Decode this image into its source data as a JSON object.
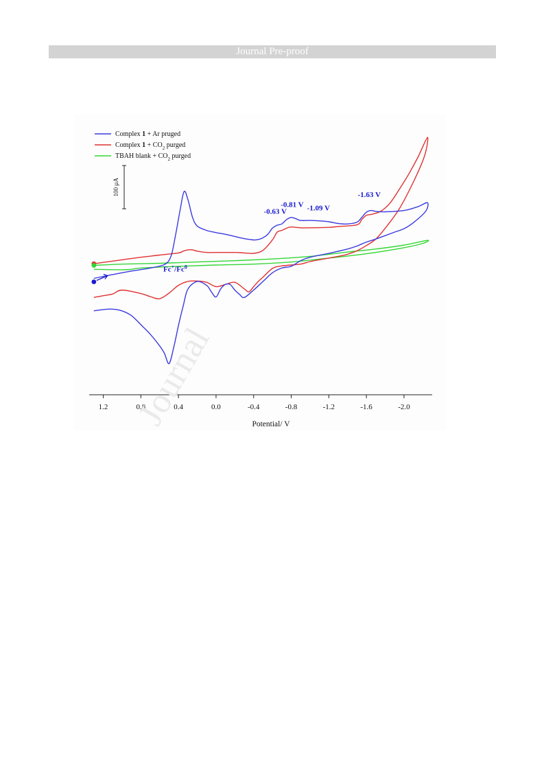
{
  "header": {
    "title": "Journal Pre-proof"
  },
  "watermark": {
    "text": "Journal"
  },
  "chart_data": {
    "type": "line",
    "title": "",
    "xlabel": "Potential/ V",
    "ylabel": "",
    "x_reversed": true,
    "xlim": [
      1.35,
      -2.3
    ],
    "ylim": [
      -310,
      290
    ],
    "x_ticks": [
      1.2,
      0.8,
      0.4,
      0.0,
      -0.4,
      -0.8,
      -1.2,
      -1.6,
      -2.0
    ],
    "x_tick_labels": [
      "1.2",
      "0.8",
      "0.4",
      "0.0",
      "-0.4",
      "-0.8",
      "-1.2",
      "-1.6",
      "-2.0"
    ],
    "grid": false,
    "legend_position": "top-left",
    "scale_bar": {
      "label": "100 µA",
      "value_uA": 100
    },
    "series": [
      {
        "name": "Complex 1 + Ar pruged",
        "color": "#3a3ae0",
        "points": [
          [
            1.3,
            -41
          ],
          [
            1.1,
            -32
          ],
          [
            0.9,
            -24
          ],
          [
            0.7,
            -17
          ],
          [
            0.55,
            -9
          ],
          [
            0.48,
            10
          ],
          [
            0.43,
            60
          ],
          [
            0.38,
            120
          ],
          [
            0.34,
            160
          ],
          [
            0.3,
            142
          ],
          [
            0.25,
            100
          ],
          [
            0.2,
            80
          ],
          [
            0.1,
            70
          ],
          [
            0.0,
            65
          ],
          [
            -0.1,
            61
          ],
          [
            -0.2,
            56
          ],
          [
            -0.3,
            51
          ],
          [
            -0.4,
            48
          ],
          [
            -0.45,
            49
          ],
          [
            -0.5,
            53
          ],
          [
            -0.55,
            61
          ],
          [
            -0.6,
            75
          ],
          [
            -0.65,
            82
          ],
          [
            -0.7,
            85
          ],
          [
            -0.75,
            95
          ],
          [
            -0.8,
            100
          ],
          [
            -0.85,
            97
          ],
          [
            -0.9,
            93
          ],
          [
            -1.0,
            93
          ],
          [
            -1.1,
            92
          ],
          [
            -1.2,
            90
          ],
          [
            -1.3,
            86
          ],
          [
            -1.4,
            85
          ],
          [
            -1.5,
            89
          ],
          [
            -1.55,
            100
          ],
          [
            -1.6,
            112
          ],
          [
            -1.65,
            116
          ],
          [
            -1.7,
            114
          ],
          [
            -1.8,
            113
          ],
          [
            -2.0,
            116
          ],
          [
            -2.15,
            125
          ],
          [
            -2.25,
            134
          ],
          [
            -2.23,
            114
          ],
          [
            -2.1,
            88
          ],
          [
            -2.0,
            74
          ],
          [
            -1.9,
            66
          ],
          [
            -1.8,
            58
          ],
          [
            -1.7,
            50
          ],
          [
            -1.6,
            43
          ],
          [
            -1.5,
            34
          ],
          [
            -1.4,
            27
          ],
          [
            -1.2,
            17
          ],
          [
            -1.0,
            8
          ],
          [
            -0.9,
            0
          ],
          [
            -0.8,
            -13
          ],
          [
            -0.7,
            -17
          ],
          [
            -0.6,
            -28
          ],
          [
            -0.5,
            -48
          ],
          [
            -0.4,
            -68
          ],
          [
            -0.3,
            -85
          ],
          [
            -0.25,
            -78
          ],
          [
            -0.2,
            -68
          ],
          [
            -0.15,
            -55
          ],
          [
            -0.1,
            -55
          ],
          [
            -0.05,
            -65
          ],
          [
            0.0,
            -84
          ],
          [
            0.05,
            -72
          ],
          [
            0.1,
            -57
          ],
          [
            0.2,
            -48
          ],
          [
            0.3,
            -66
          ],
          [
            0.35,
            -105
          ],
          [
            0.4,
            -150
          ],
          [
            0.45,
            -200
          ],
          [
            0.5,
            -238
          ],
          [
            0.55,
            -214
          ],
          [
            0.6,
            -197
          ],
          [
            0.7,
            -170
          ],
          [
            0.8,
            -148
          ],
          [
            0.9,
            -127
          ],
          [
            1.0,
            -116
          ],
          [
            1.1,
            -112
          ],
          [
            1.2,
            -113
          ],
          [
            1.3,
            -116
          ]
        ]
      },
      {
        "name": "Complex 1 + CO2 purged",
        "color": "#e03030",
        "points": [
          [
            1.3,
            -7
          ],
          [
            1.2,
            -4
          ],
          [
            1.0,
            2
          ],
          [
            0.8,
            8
          ],
          [
            0.6,
            13
          ],
          [
            0.4,
            18
          ],
          [
            0.35,
            22
          ],
          [
            0.3,
            25
          ],
          [
            0.25,
            25
          ],
          [
            0.2,
            22
          ],
          [
            0.1,
            19
          ],
          [
            0.0,
            19
          ],
          [
            -0.2,
            19
          ],
          [
            -0.3,
            18
          ],
          [
            -0.4,
            17
          ],
          [
            -0.5,
            24
          ],
          [
            -0.6,
            48
          ],
          [
            -0.65,
            66
          ],
          [
            -0.7,
            70
          ],
          [
            -0.75,
            75
          ],
          [
            -0.8,
            78
          ],
          [
            -0.9,
            76
          ],
          [
            -1.0,
            76
          ],
          [
            -1.2,
            77
          ],
          [
            -1.3,
            79
          ],
          [
            -1.5,
            83
          ],
          [
            -1.55,
            95
          ],
          [
            -1.6,
            105
          ],
          [
            -1.65,
            107
          ],
          [
            -1.75,
            114
          ],
          [
            -1.85,
            133
          ],
          [
            -1.95,
            165
          ],
          [
            -2.05,
            200
          ],
          [
            -2.15,
            240
          ],
          [
            -2.25,
            285
          ],
          [
            -2.22,
            243
          ],
          [
            -2.1,
            182
          ],
          [
            -1.95,
            120
          ],
          [
            -1.8,
            75
          ],
          [
            -1.7,
            50
          ],
          [
            -1.6,
            35
          ],
          [
            -1.5,
            23
          ],
          [
            -1.4,
            15
          ],
          [
            -1.3,
            10
          ],
          [
            -1.2,
            6
          ],
          [
            -1.0,
            -2
          ],
          [
            -0.9,
            -8
          ],
          [
            -0.7,
            -12
          ],
          [
            -0.6,
            -18
          ],
          [
            -0.5,
            -38
          ],
          [
            -0.45,
            -48
          ],
          [
            -0.4,
            -60
          ],
          [
            -0.35,
            -72
          ],
          [
            -0.3,
            -65
          ],
          [
            -0.2,
            -50
          ],
          [
            -0.1,
            -55
          ],
          [
            0.0,
            -60
          ],
          [
            0.1,
            -50
          ],
          [
            0.2,
            -47
          ],
          [
            0.3,
            -48
          ],
          [
            0.4,
            -57
          ],
          [
            0.5,
            -75
          ],
          [
            0.6,
            -88
          ],
          [
            0.7,
            -83
          ],
          [
            0.8,
            -76
          ],
          [
            1.0,
            -68
          ],
          [
            1.1,
            -77
          ],
          [
            1.2,
            -81
          ],
          [
            1.3,
            -85
          ]
        ]
      },
      {
        "name": "TBAH blank + CO2 purged",
        "color": "#33d633",
        "points": [
          [
            1.3,
            -11
          ],
          [
            1.0,
            -8
          ],
          [
            0.6,
            -6
          ],
          [
            0.2,
            -3
          ],
          [
            -0.2,
            0
          ],
          [
            -0.6,
            4
          ],
          [
            -1.0,
            10
          ],
          [
            -1.4,
            20
          ],
          [
            -1.7,
            27
          ],
          [
            -2.0,
            36
          ],
          [
            -2.25,
            47
          ],
          [
            -2.2,
            40
          ],
          [
            -2.0,
            30
          ],
          [
            -1.6,
            16
          ],
          [
            -1.2,
            6
          ],
          [
            -0.8,
            -3
          ],
          [
            -0.4,
            -8
          ],
          [
            0.0,
            -10
          ],
          [
            0.4,
            -13
          ],
          [
            0.8,
            -17
          ],
          [
            0.9,
            -20
          ],
          [
            1.0,
            -21
          ],
          [
            1.3,
            -20
          ]
        ]
      }
    ],
    "annotations": [
      {
        "text": "-0.63 V",
        "x": -0.63,
        "y": 108,
        "color": "#1a1ad0"
      },
      {
        "text": "-0.81 V",
        "x": -0.81,
        "y": 124,
        "color": "#1a1ad0"
      },
      {
        "text": "-1.09 V",
        "x": -1.09,
        "y": 116,
        "color": "#1a1ad0"
      },
      {
        "text": "-1.63 V",
        "x": -1.63,
        "y": 147,
        "color": "#1a1ad0"
      }
    ],
    "redox_label": {
      "main": "Fc",
      "sup1": "+",
      "mid": "/Fc",
      "sup2": "0",
      "color": "#1a1ad0"
    },
    "start_markers": [
      {
        "series": "Complex 1 + Ar pruged",
        "color": "#1a1ad0"
      },
      {
        "series": "Complex 1 + CO2 purged",
        "color": "#e03030"
      },
      {
        "series": "TBAH blank + CO2 purged",
        "color": "#33d633"
      }
    ]
  },
  "legend": {
    "entries": [
      {
        "pre": "Complex ",
        "bold": "1",
        "post": " + Ar pruged",
        "sub": "",
        "tail": ""
      },
      {
        "pre": "Complex ",
        "bold": "1",
        "post": " + CO",
        "sub": "2",
        "tail": " purged"
      },
      {
        "pre": "TBAH blank + CO",
        "bold": "",
        "post": "",
        "sub": "2",
        "tail": " purged"
      }
    ]
  }
}
